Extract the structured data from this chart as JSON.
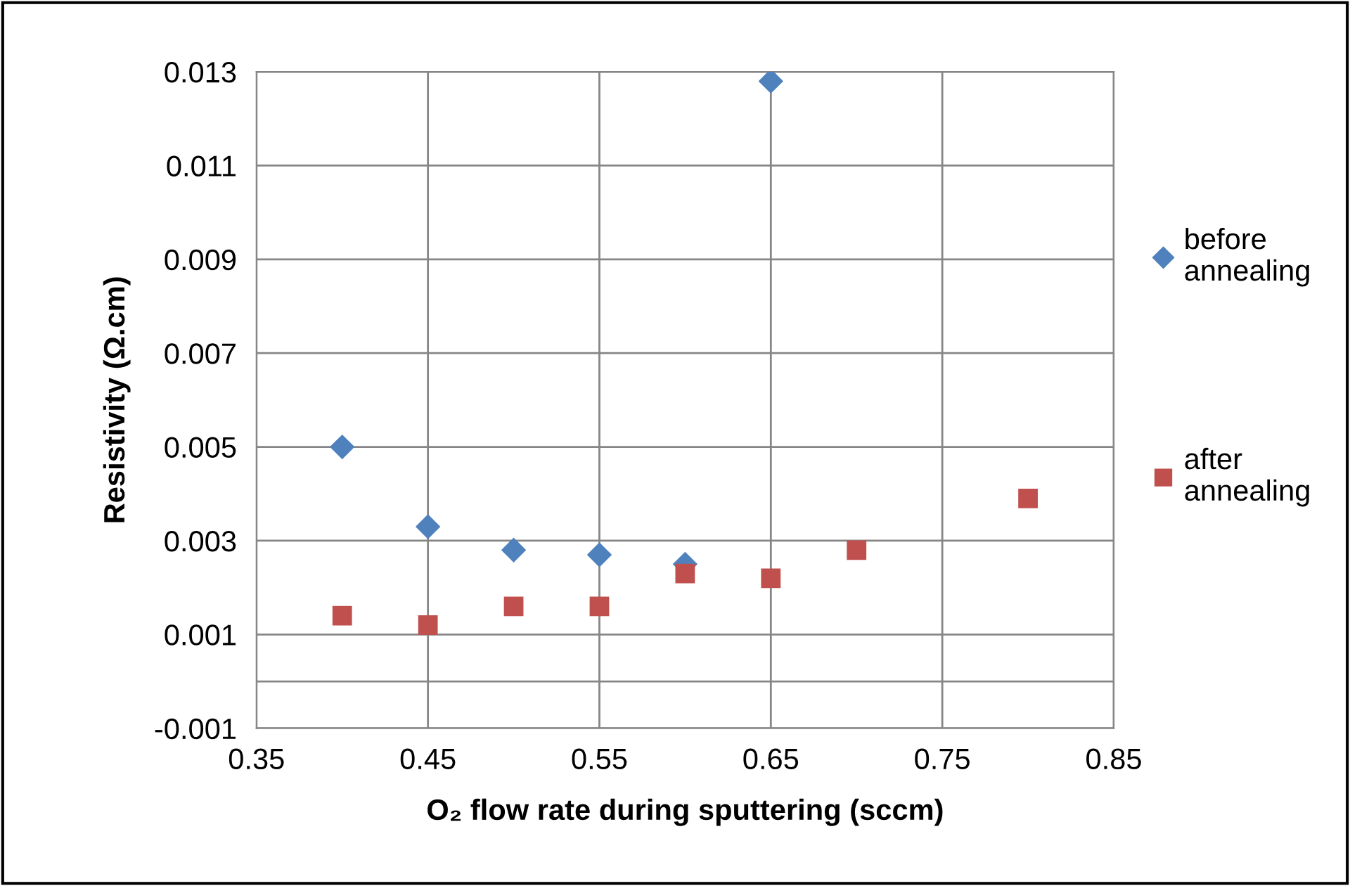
{
  "chart_data": {
    "type": "scatter",
    "xlabel": "O₂ flow rate during sputtering (sccm)",
    "ylabel": "Resistivity (Ω.cm)",
    "xlim": [
      0.35,
      0.85
    ],
    "xticks": [
      0.35,
      0.45,
      0.55,
      0.65,
      0.75,
      0.85
    ],
    "ylim": [
      -0.001,
      0.013
    ],
    "yticks": [
      -0.001,
      0.001,
      0.003,
      0.005,
      0.007,
      0.009,
      0.011,
      0.013
    ],
    "grid": true,
    "legend": "right",
    "ref_lines": [
      {
        "axis": "y",
        "value": 0,
        "label": null,
        "color": "#868686"
      }
    ],
    "series": [
      {
        "name": "before annealing",
        "color": "#4f81bd",
        "marker": "diamond",
        "x": [
          0.4,
          0.45,
          0.5,
          0.55,
          0.6,
          0.65
        ],
        "values": [
          0.005,
          0.0033,
          0.0028,
          0.0027,
          0.0025,
          0.0128
        ]
      },
      {
        "name": "after annealing",
        "color": "#c0504d",
        "marker": "square",
        "x": [
          0.4,
          0.45,
          0.5,
          0.55,
          0.6,
          0.65,
          0.7,
          0.8
        ],
        "values": [
          0.0014,
          0.0012,
          0.0016,
          0.0016,
          0.0023,
          0.0022,
          0.0028,
          0.0039
        ]
      }
    ]
  }
}
